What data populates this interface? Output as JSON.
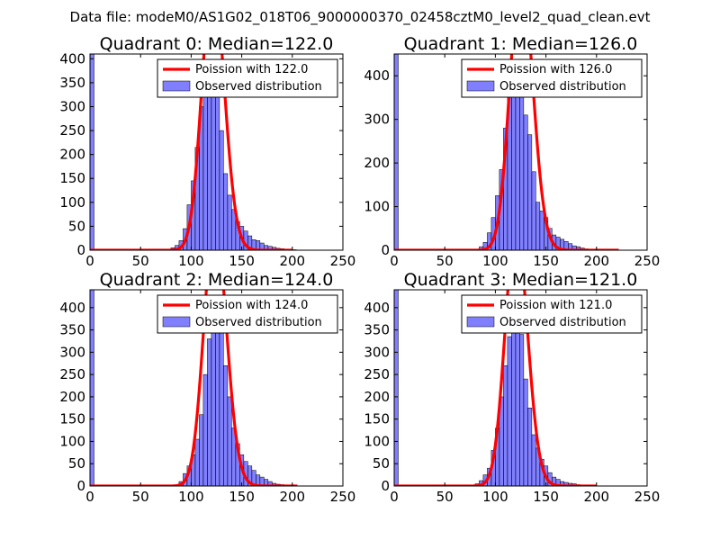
{
  "figure": {
    "suptitle": "Data file: modeM0/AS1G02_018T06_9000000370_02458cztM0_level2_quad_clean.evt"
  },
  "chart_data": [
    {
      "type": "bar",
      "title": "Quadrant 0: Median=122.0",
      "xlabel": "",
      "ylabel": "",
      "xlim": [
        0,
        250
      ],
      "ylim": [
        0,
        410
      ],
      "xticks": [
        0,
        50,
        100,
        150,
        200,
        250
      ],
      "yticks": [
        0,
        50,
        100,
        150,
        200,
        250,
        300,
        350,
        400
      ],
      "grid": false,
      "legend": {
        "position": "top-right",
        "entries": [
          "Poission with 122.0",
          "Observed distribution"
        ]
      },
      "bar_width": 4,
      "bin_starts": [
        0,
        80,
        84,
        88,
        92,
        96,
        100,
        104,
        108,
        112,
        116,
        120,
        124,
        128,
        132,
        136,
        140,
        144,
        148,
        152,
        156,
        160,
        164,
        168,
        172,
        176,
        180,
        184,
        188,
        192,
        196,
        200
      ],
      "bin_counts": [
        410,
        5,
        10,
        20,
        45,
        95,
        145,
        215,
        300,
        360,
        375,
        370,
        320,
        250,
        160,
        115,
        85,
        60,
        50,
        40,
        30,
        22,
        20,
        15,
        10,
        8,
        6,
        4,
        3,
        1,
        1,
        1
      ],
      "poisson": {
        "mean": 122.0,
        "scale": 15750,
        "x_range": [
          0,
          200
        ]
      },
      "series": [
        {
          "name": "Poission with 122.0",
          "kind": "line",
          "color": "#ff0000"
        },
        {
          "name": "Observed distribution",
          "kind": "bar",
          "color": "#7f7fff"
        }
      ]
    },
    {
      "type": "bar",
      "title": "Quadrant 1: Median=126.0",
      "xlabel": "",
      "ylabel": "",
      "xlim": [
        0,
        250
      ],
      "ylim": [
        0,
        450
      ],
      "xticks": [
        0,
        50,
        100,
        150,
        200,
        250
      ],
      "yticks": [
        0,
        100,
        200,
        300,
        400
      ],
      "grid": false,
      "legend": {
        "position": "top-right",
        "entries": [
          "Poission with 126.0",
          "Observed distribution"
        ]
      },
      "bar_width": 4,
      "bin_starts": [
        0,
        80,
        84,
        88,
        92,
        96,
        100,
        104,
        108,
        112,
        116,
        120,
        124,
        128,
        132,
        136,
        140,
        144,
        148,
        152,
        156,
        160,
        164,
        168,
        172,
        176,
        180,
        184,
        188,
        192,
        196
      ],
      "bin_counts": [
        450,
        2,
        8,
        18,
        40,
        75,
        125,
        185,
        280,
        380,
        395,
        420,
        415,
        310,
        265,
        180,
        110,
        90,
        75,
        50,
        35,
        30,
        25,
        20,
        15,
        10,
        8,
        5,
        3,
        2,
        1
      ],
      "poisson": {
        "mean": 126.0,
        "scale": 18000,
        "x_range": [
          0,
          222
        ]
      },
      "series": [
        {
          "name": "Poission with 126.0",
          "kind": "line",
          "color": "#ff0000"
        },
        {
          "name": "Observed distribution",
          "kind": "bar",
          "color": "#7f7fff"
        }
      ]
    },
    {
      "type": "bar",
      "title": "Quadrant 2: Median=124.0",
      "xlabel": "",
      "ylabel": "",
      "xlim": [
        0,
        250
      ],
      "ylim": [
        0,
        440
      ],
      "xticks": [
        0,
        50,
        100,
        150,
        200,
        250
      ],
      "yticks": [
        0,
        50,
        100,
        150,
        200,
        250,
        300,
        350,
        400
      ],
      "grid": false,
      "legend": {
        "position": "top-right",
        "entries": [
          "Poission with 124.0",
          "Observed distribution"
        ]
      },
      "bar_width": 4,
      "bin_starts": [
        0,
        88,
        92,
        96,
        100,
        104,
        108,
        112,
        116,
        120,
        124,
        128,
        132,
        136,
        140,
        144,
        148,
        152,
        156,
        160,
        164,
        168,
        172,
        176,
        180,
        184,
        188,
        192,
        196
      ],
      "bin_counts": [
        440,
        10,
        28,
        45,
        70,
        105,
        160,
        250,
        330,
        390,
        420,
        380,
        270,
        200,
        130,
        95,
        70,
        55,
        45,
        35,
        25,
        20,
        15,
        10,
        6,
        4,
        3,
        2,
        1
      ],
      "poisson": {
        "mean": 124.0,
        "scale": 16500,
        "x_range": [
          0,
          205
        ]
      },
      "series": [
        {
          "name": "Poission with 124.0",
          "kind": "line",
          "color": "#ff0000"
        },
        {
          "name": "Observed distribution",
          "kind": "bar",
          "color": "#7f7fff"
        }
      ]
    },
    {
      "type": "bar",
      "title": "Quadrant 3: Median=121.0",
      "xlabel": "",
      "ylabel": "",
      "xlim": [
        0,
        250
      ],
      "ylim": [
        0,
        440
      ],
      "xticks": [
        0,
        50,
        100,
        150,
        200,
        250
      ],
      "yticks": [
        0,
        50,
        100,
        150,
        200,
        250,
        300,
        350,
        400
      ],
      "grid": false,
      "legend": {
        "position": "top-right",
        "entries": [
          "Poission with 121.0",
          "Observed distribution"
        ]
      },
      "bar_width": 4,
      "bin_starts": [
        0,
        80,
        84,
        88,
        92,
        96,
        100,
        104,
        108,
        112,
        116,
        120,
        124,
        128,
        132,
        136,
        140,
        144,
        148,
        152,
        156,
        160,
        164,
        168,
        172,
        176,
        180,
        184,
        188,
        192
      ],
      "bin_counts": [
        440,
        5,
        12,
        25,
        40,
        80,
        130,
        200,
        270,
        335,
        365,
        375,
        340,
        240,
        175,
        115,
        85,
        60,
        45,
        30,
        20,
        15,
        10,
        8,
        6,
        5,
        3,
        2,
        1,
        1
      ],
      "poisson": {
        "mean": 121.0,
        "scale": 16000,
        "x_range": [
          0,
          200
        ]
      },
      "series": [
        {
          "name": "Poission with 121.0",
          "kind": "line",
          "color": "#ff0000"
        },
        {
          "name": "Observed distribution",
          "kind": "bar",
          "color": "#7f7fff"
        }
      ]
    }
  ]
}
